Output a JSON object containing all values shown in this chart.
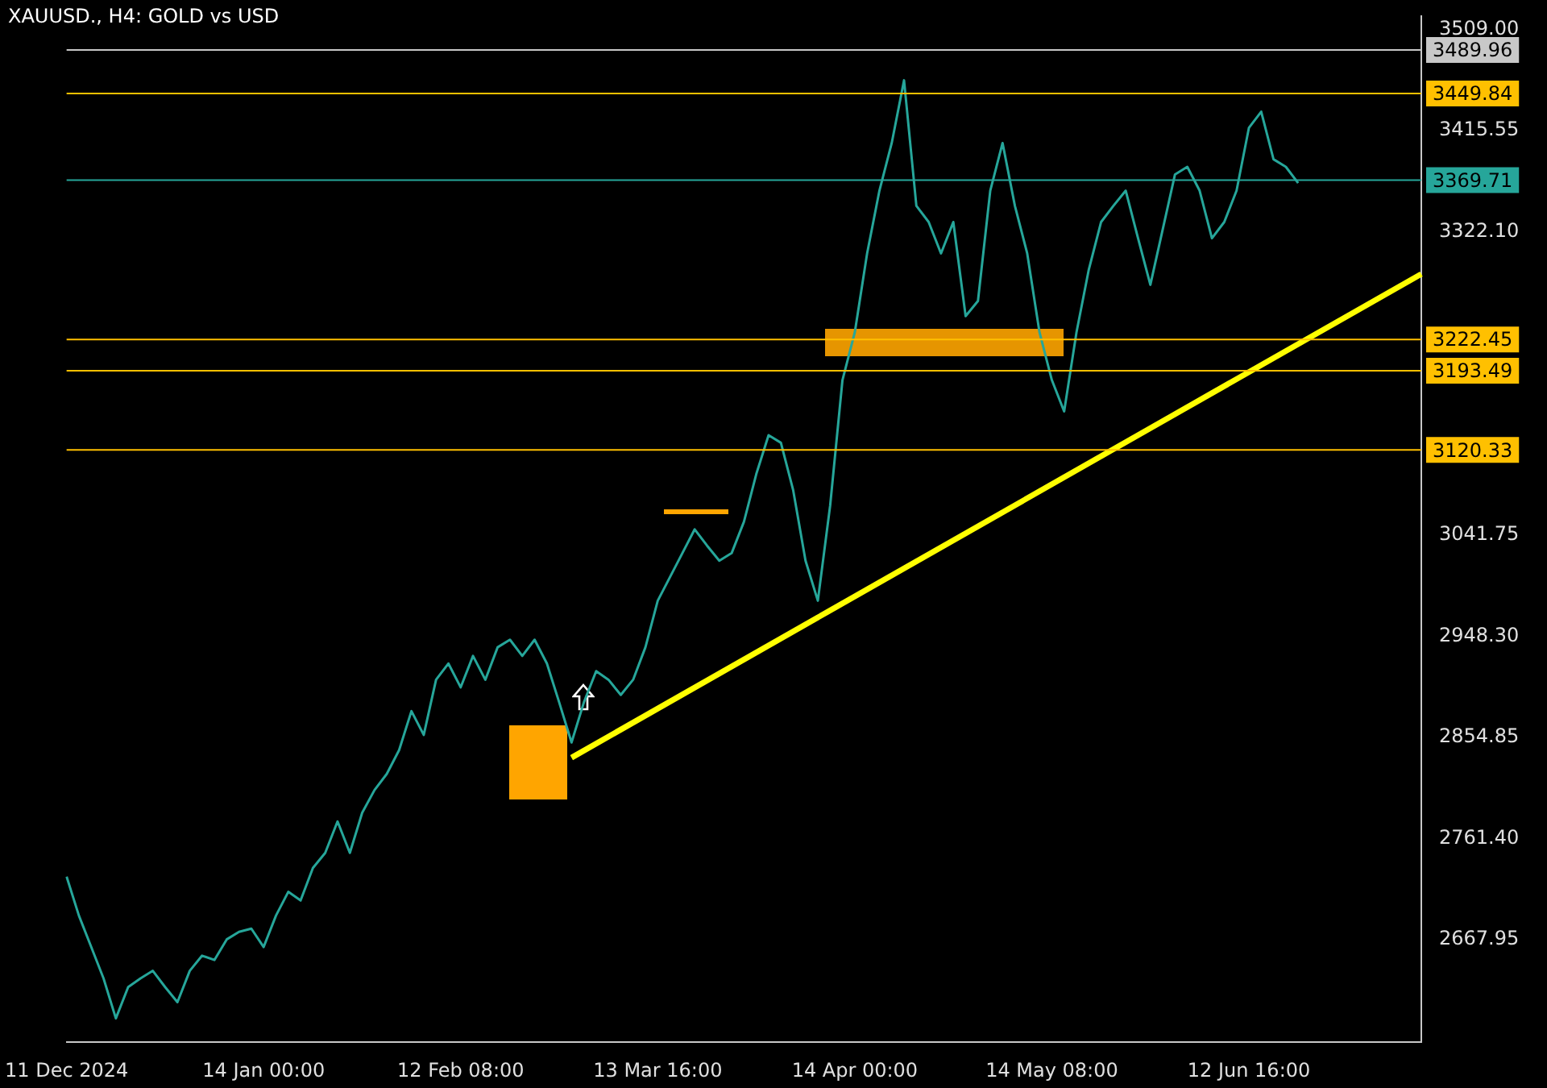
{
  "chart_data": {
    "type": "line",
    "title": "XAUUSD., H4:  GOLD vs USD",
    "categories": [
      "11 Dec 2024",
      null,
      null,
      null,
      null,
      null,
      null,
      null,
      null,
      null,
      null,
      null,
      null,
      null,
      null,
      null,
      "14 Jan 00:00",
      null,
      null,
      null,
      null,
      null,
      null,
      null,
      null,
      null,
      null,
      null,
      null,
      null,
      null,
      null,
      "12 Feb 08:00",
      null,
      null,
      null,
      null,
      null,
      null,
      null,
      null,
      null,
      null,
      null,
      null,
      null,
      null,
      null,
      "13 Mar 16:00",
      null,
      null,
      null,
      null,
      null,
      null,
      null,
      null,
      null,
      null,
      null,
      null,
      null,
      null,
      null,
      "14 Apr 00:00",
      null,
      null,
      null,
      null,
      null,
      null,
      null,
      null,
      null,
      null,
      null,
      null,
      null,
      null,
      null,
      "14 May 08:00",
      null,
      null,
      null,
      null,
      null,
      null,
      null,
      null,
      null,
      null,
      null,
      null,
      null,
      null,
      null,
      "12 Jun 16:00",
      null,
      null,
      null,
      null,
      null,
      null,
      null,
      null,
      null,
      null,
      null,
      null,
      null,
      null
    ],
    "series": [
      {
        "color": "#26a69a",
        "values": [
          2726,
          2690,
          2661,
          2632,
          2595,
          2624,
          2632,
          2639,
          2624,
          2610,
          2639,
          2653,
          2649,
          2668,
          2675,
          2678,
          2661,
          2690,
          2712,
          2704,
          2734,
          2748,
          2777,
          2748,
          2785,
          2806,
          2821,
          2843,
          2879,
          2857,
          2908,
          2923,
          2901,
          2930,
          2908,
          2938,
          2945,
          2930,
          2945,
          2923,
          2887,
          2850,
          2887,
          2916,
          2908,
          2894,
          2908,
          2938,
          2981,
          3003,
          3025,
          3047,
          3032,
          3018,
          3025,
          3054,
          3098,
          3134,
          3127,
          3083,
          3018,
          2981,
          3069,
          3185,
          3229,
          3302,
          3360,
          3404,
          3462,
          3346,
          3331,
          3302,
          3331,
          3244,
          3258,
          3360,
          3404,
          3346,
          3302,
          3229,
          3185,
          3156,
          3229,
          3287,
          3331,
          3346,
          3360,
          3316,
          3273,
          3324,
          3375,
          3382,
          3360,
          3316,
          3331,
          3360,
          3418,
          3433,
          3389,
          3382,
          3367,
          null,
          null,
          null,
          null,
          null,
          null,
          null,
          null,
          null,
          null
        ]
      },
      {
        "type": "line",
        "color": "#ffff00",
        "values": [
          null,
          null,
          null,
          null,
          null,
          null,
          null,
          null,
          null,
          null,
          null,
          null,
          null,
          null,
          null,
          null,
          null,
          null,
          null,
          null,
          null,
          null,
          null,
          null,
          null,
          null,
          null,
          null,
          null,
          null,
          null,
          null,
          null,
          null,
          null,
          null,
          null,
          null,
          null,
          null,
          null,
          2836,
          null,
          null,
          null,
          null,
          null,
          null,
          null,
          null,
          null,
          null,
          null,
          null,
          null,
          null,
          null,
          null,
          null,
          null,
          null,
          null,
          null,
          null,
          null,
          null,
          null,
          null,
          null,
          null,
          null,
          null,
          null,
          null,
          null,
          null,
          null,
          null,
          null,
          null,
          null,
          null,
          null,
          null,
          null,
          null,
          null,
          null,
          null,
          null,
          null,
          null,
          null,
          null,
          null,
          null,
          null,
          null,
          null,
          null,
          null,
          null,
          null,
          null,
          null,
          null,
          null,
          null,
          null,
          null,
          3283
        ]
      }
    ],
    "ylim": [
      2573,
      3521
    ],
    "yticks": [
      2667.95,
      {
        "value": 2761.4,
        "label": "2761.40"
      },
      2854.85,
      {
        "value": 2948.3,
        "label": "2948.30"
      },
      3041.75,
      {
        "value": 3322.1,
        "label": "3322.10"
      },
      3415.55,
      {
        "value": 3509,
        "label": "3509.00"
      }
    ],
    "ref_lines": [
      {
        "axis": "y",
        "value": 3489.96,
        "label": "3489.96",
        "color": "#c8c8c8"
      },
      {
        "axis": "y",
        "value": 3449.84,
        "label": "3449.84",
        "color": "#ffc000"
      },
      {
        "axis": "y",
        "value": 3369.71,
        "label": "3369.71",
        "color": "#26a69a"
      },
      {
        "axis": "y",
        "value": 3222.45,
        "label": "3222.45",
        "color": "#ffc000"
      },
      {
        "axis": "y",
        "value": 3193.49,
        "label": "3193.49",
        "color": "#ffc000"
      },
      {
        "axis": "y",
        "value": 3120.33,
        "label": "3120.33",
        "color": "#ffc000"
      }
    ],
    "grid": false,
    "legend": false,
    "marker": "none"
  }
}
